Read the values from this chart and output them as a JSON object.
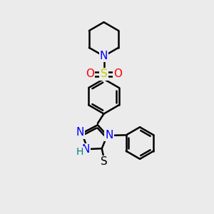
{
  "background_color": "#ebebeb",
  "bond_color": "#000000",
  "bond_width": 1.8,
  "atom_colors": {
    "N": "#0000ff",
    "S_sulfonyl": "#cccc00",
    "O": "#ff0000",
    "S_thiol": "#000000",
    "H": "#008080",
    "C": "#000000"
  },
  "figsize": [
    3.0,
    3.0
  ],
  "dpi": 100
}
